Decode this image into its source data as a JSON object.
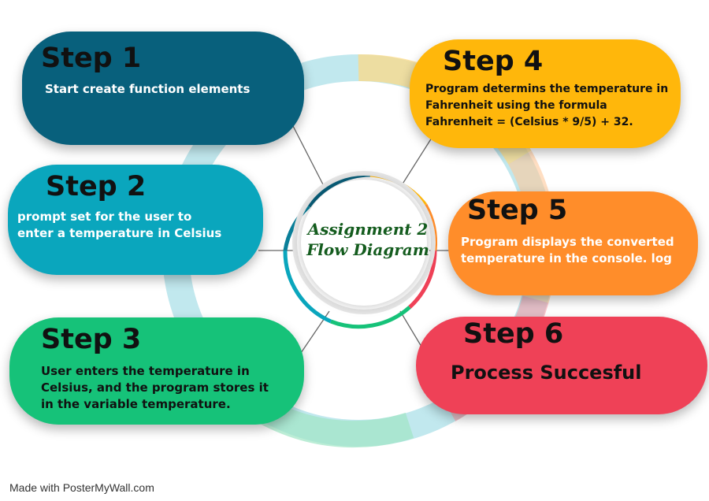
{
  "center": {
    "title": "Assignment 2\nFlow Diagram"
  },
  "steps": [
    {
      "id": "step1",
      "title": "Step 1",
      "text": "Start create function elements",
      "color": "#08607c"
    },
    {
      "id": "step2",
      "title": "Step 2",
      "text": " prompt set for the user to\nenter a temperature in Celsius",
      "color": "#0aa6bd"
    },
    {
      "id": "step3",
      "title": "Step 3",
      "text": "User enters the temperature in\nCelsius, and the program stores it\nin the variable temperature.",
      "color": "#16c279"
    },
    {
      "id": "step4",
      "title": "Step 4",
      "text": "Program determins the temperature in\nFahrenheit using the formula\nFahrenheit = (Celsius * 9/5) + 32.",
      "color": "#ffb70b"
    },
    {
      "id": "step5",
      "title": "Step 5",
      "text": "Program displays the converted\ntemperature in the console. log",
      "color": "#ff8d2a"
    },
    {
      "id": "step6",
      "title": "Step 6",
      "text": "Process Succesful",
      "color": "#ef4157"
    }
  ],
  "footer": "Made with PosterMyWall.com"
}
